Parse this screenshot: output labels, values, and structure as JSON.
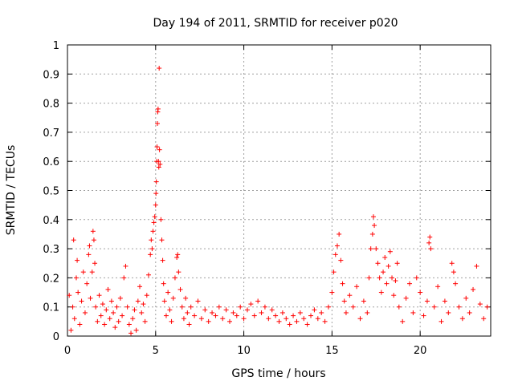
{
  "chart_data": {
    "type": "scatter",
    "title": "Day 194 of 2011, SRMTID for receiver p020",
    "xlabel": "GPS time / hours",
    "ylabel": "SRMTID / TECUs",
    "xlim": [
      0,
      24
    ],
    "ylim": [
      0,
      1
    ],
    "grid": true,
    "marker": "+",
    "color": "#ff0000",
    "x_ticks": [
      "0",
      "5",
      "10",
      "15",
      "20"
    ],
    "x_tick_values": [
      0,
      5,
      10,
      15,
      20
    ],
    "y_ticks": [
      "0",
      "0.1",
      "0.2",
      "0.3",
      "0.4",
      "0.5",
      "0.6",
      "0.7",
      "0.8",
      "0.9",
      "1"
    ],
    "y_tick_values": [
      0,
      0.1,
      0.2,
      0.3,
      0.4,
      0.5,
      0.6,
      0.7,
      0.8,
      0.9,
      1.0
    ],
    "series": [
      {
        "name": "SRMTID",
        "points": [
          [
            0.1,
            0.14
          ],
          [
            0.2,
            0.02
          ],
          [
            0.3,
            0.1
          ],
          [
            0.35,
            0.33
          ],
          [
            0.4,
            0.06
          ],
          [
            0.5,
            0.2
          ],
          [
            0.55,
            0.26
          ],
          [
            0.6,
            0.15
          ],
          [
            0.7,
            0.04
          ],
          [
            0.8,
            0.12
          ],
          [
            0.9,
            0.22
          ],
          [
            1.0,
            0.08
          ],
          [
            1.1,
            0.18
          ],
          [
            1.2,
            0.28
          ],
          [
            1.25,
            0.31
          ],
          [
            1.3,
            0.13
          ],
          [
            1.4,
            0.22
          ],
          [
            1.45,
            0.36
          ],
          [
            1.5,
            0.33
          ],
          [
            1.55,
            0.25
          ],
          [
            1.6,
            0.1
          ],
          [
            1.7,
            0.05
          ],
          [
            1.8,
            0.14
          ],
          [
            1.9,
            0.07
          ],
          [
            2.0,
            0.11
          ],
          [
            2.1,
            0.04
          ],
          [
            2.2,
            0.09
          ],
          [
            2.3,
            0.16
          ],
          [
            2.4,
            0.06
          ],
          [
            2.5,
            0.12
          ],
          [
            2.6,
            0.08
          ],
          [
            2.7,
            0.03
          ],
          [
            2.8,
            0.1
          ],
          [
            2.9,
            0.05
          ],
          [
            3.0,
            0.13
          ],
          [
            3.1,
            0.07
          ],
          [
            3.2,
            0.2
          ],
          [
            3.3,
            0.24
          ],
          [
            3.4,
            0.1
          ],
          [
            3.5,
            0.04
          ],
          [
            3.6,
            0.01
          ],
          [
            3.7,
            0.06
          ],
          [
            3.8,
            0.09
          ],
          [
            3.9,
            0.02
          ],
          [
            4.0,
            0.12
          ],
          [
            4.1,
            0.17
          ],
          [
            4.2,
            0.08
          ],
          [
            4.3,
            0.11
          ],
          [
            4.4,
            0.05
          ],
          [
            4.5,
            0.14
          ],
          [
            4.6,
            0.21
          ],
          [
            4.7,
            0.28
          ],
          [
            4.75,
            0.33
          ],
          [
            4.8,
            0.3
          ],
          [
            4.85,
            0.36
          ],
          [
            4.9,
            0.39
          ],
          [
            4.95,
            0.41
          ],
          [
            5.0,
            0.45
          ],
          [
            5.02,
            0.49
          ],
          [
            5.04,
            0.53
          ],
          [
            5.06,
            0.6
          ],
          [
            5.08,
            0.65
          ],
          [
            5.1,
            0.73
          ],
          [
            5.12,
            0.77
          ],
          [
            5.14,
            0.78
          ],
          [
            5.16,
            0.6
          ],
          [
            5.18,
            0.58
          ],
          [
            5.2,
            0.92
          ],
          [
            5.22,
            0.64
          ],
          [
            5.25,
            0.59
          ],
          [
            5.3,
            0.4
          ],
          [
            5.35,
            0.33
          ],
          [
            5.4,
            0.26
          ],
          [
            5.45,
            0.18
          ],
          [
            5.5,
            0.12
          ],
          [
            5.6,
            0.07
          ],
          [
            5.7,
            0.15
          ],
          [
            5.8,
            0.09
          ],
          [
            5.9,
            0.05
          ],
          [
            6.0,
            0.13
          ],
          [
            6.1,
            0.2
          ],
          [
            6.2,
            0.27
          ],
          [
            6.25,
            0.28
          ],
          [
            6.3,
            0.22
          ],
          [
            6.4,
            0.16
          ],
          [
            6.5,
            0.1
          ],
          [
            6.6,
            0.06
          ],
          [
            6.7,
            0.13
          ],
          [
            6.8,
            0.08
          ],
          [
            6.9,
            0.04
          ],
          [
            7.0,
            0.1
          ],
          [
            7.2,
            0.07
          ],
          [
            7.4,
            0.12
          ],
          [
            7.6,
            0.06
          ],
          [
            7.8,
            0.09
          ],
          [
            8.0,
            0.05
          ],
          [
            8.2,
            0.08
          ],
          [
            8.4,
            0.07
          ],
          [
            8.6,
            0.1
          ],
          [
            8.8,
            0.06
          ],
          [
            9.0,
            0.09
          ],
          [
            9.2,
            0.05
          ],
          [
            9.4,
            0.08
          ],
          [
            9.6,
            0.07
          ],
          [
            9.8,
            0.1
          ],
          [
            10.0,
            0.06
          ],
          [
            10.2,
            0.09
          ],
          [
            10.4,
            0.11
          ],
          [
            10.6,
            0.07
          ],
          [
            10.8,
            0.12
          ],
          [
            11.0,
            0.08
          ],
          [
            11.2,
            0.1
          ],
          [
            11.4,
            0.06
          ],
          [
            11.6,
            0.09
          ],
          [
            11.8,
            0.07
          ],
          [
            12.0,
            0.05
          ],
          [
            12.2,
            0.08
          ],
          [
            12.4,
            0.06
          ],
          [
            12.6,
            0.04
          ],
          [
            12.8,
            0.07
          ],
          [
            13.0,
            0.05
          ],
          [
            13.2,
            0.08
          ],
          [
            13.4,
            0.06
          ],
          [
            13.6,
            0.04
          ],
          [
            13.8,
            0.07
          ],
          [
            14.0,
            0.09
          ],
          [
            14.2,
            0.06
          ],
          [
            14.4,
            0.08
          ],
          [
            14.6,
            0.05
          ],
          [
            14.8,
            0.1
          ],
          [
            15.0,
            0.15
          ],
          [
            15.1,
            0.22
          ],
          [
            15.2,
            0.28
          ],
          [
            15.3,
            0.31
          ],
          [
            15.4,
            0.35
          ],
          [
            15.5,
            0.26
          ],
          [
            15.6,
            0.18
          ],
          [
            15.7,
            0.12
          ],
          [
            15.8,
            0.08
          ],
          [
            16.0,
            0.14
          ],
          [
            16.2,
            0.1
          ],
          [
            16.4,
            0.17
          ],
          [
            16.6,
            0.06
          ],
          [
            16.8,
            0.12
          ],
          [
            17.0,
            0.08
          ],
          [
            17.1,
            0.2
          ],
          [
            17.2,
            0.3
          ],
          [
            17.3,
            0.35
          ],
          [
            17.35,
            0.41
          ],
          [
            17.4,
            0.38
          ],
          [
            17.5,
            0.3
          ],
          [
            17.6,
            0.25
          ],
          [
            17.7,
            0.2
          ],
          [
            17.8,
            0.15
          ],
          [
            17.9,
            0.22
          ],
          [
            18.0,
            0.27
          ],
          [
            18.1,
            0.18
          ],
          [
            18.2,
            0.24
          ],
          [
            18.3,
            0.29
          ],
          [
            18.4,
            0.2
          ],
          [
            18.5,
            0.14
          ],
          [
            18.6,
            0.19
          ],
          [
            18.7,
            0.25
          ],
          [
            18.8,
            0.1
          ],
          [
            19.0,
            0.05
          ],
          [
            19.2,
            0.13
          ],
          [
            19.4,
            0.18
          ],
          [
            19.6,
            0.08
          ],
          [
            19.8,
            0.2
          ],
          [
            20.0,
            0.15
          ],
          [
            20.2,
            0.07
          ],
          [
            20.4,
            0.12
          ],
          [
            20.5,
            0.32
          ],
          [
            20.55,
            0.34
          ],
          [
            20.6,
            0.3
          ],
          [
            20.8,
            0.1
          ],
          [
            21.0,
            0.17
          ],
          [
            21.2,
            0.05
          ],
          [
            21.4,
            0.12
          ],
          [
            21.6,
            0.08
          ],
          [
            21.8,
            0.25
          ],
          [
            21.9,
            0.22
          ],
          [
            22.0,
            0.18
          ],
          [
            22.2,
            0.1
          ],
          [
            22.4,
            0.06
          ],
          [
            22.6,
            0.13
          ],
          [
            22.8,
            0.08
          ],
          [
            23.0,
            0.16
          ],
          [
            23.2,
            0.24
          ],
          [
            23.4,
            0.11
          ],
          [
            23.6,
            0.06
          ],
          [
            23.8,
            0.1
          ]
        ]
      }
    ]
  }
}
